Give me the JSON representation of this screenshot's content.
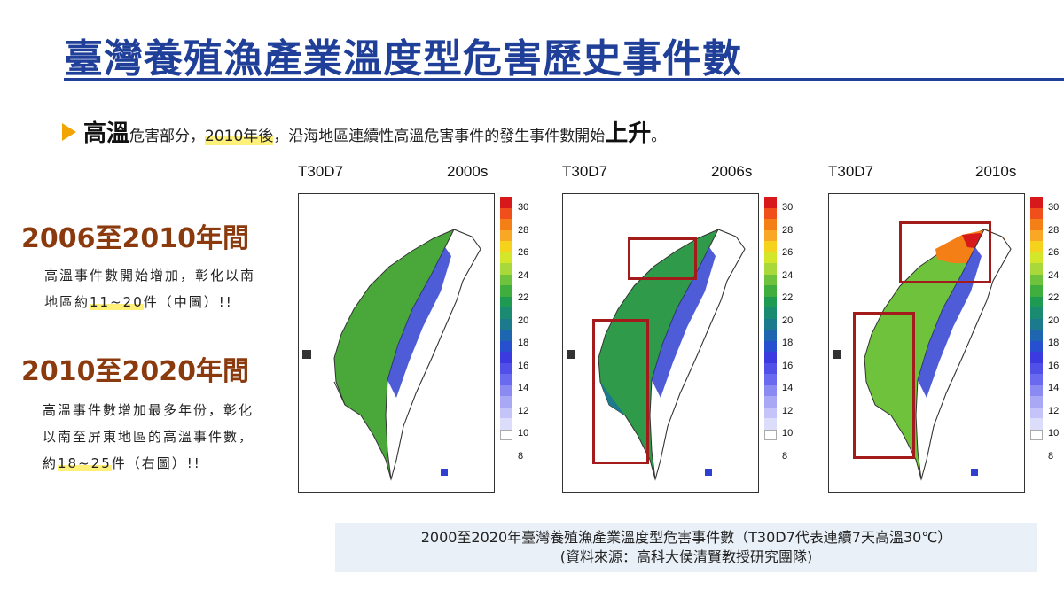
{
  "title": "臺灣養殖漁產業溫度型危害歷史事件數",
  "bullet": {
    "strong1": "高溫",
    "t1": "危害部分，",
    "highlight": "2010年後",
    "t2": "，沿海地區連續性高溫危害事件的發生事件數開始",
    "strong2": "上升",
    "t3": "。"
  },
  "section1": {
    "heading": "2006至2010年間",
    "line1": "高溫事件數開始增加，彰化以南",
    "line2_pre": "地區約",
    "line2_hl": "11~20",
    "line2_post": "件（中圖）!!"
  },
  "section2": {
    "heading": "2010至2020年間",
    "line1": "高溫事件數增加最多年份，彰化",
    "line2": "以南至屏東地區的高溫事件數，",
    "line3_pre": "約",
    "line3_hl": "18~25",
    "line3_post": "件（右圖）!!"
  },
  "maps": [
    {
      "left_label": "T30D7",
      "right_label": "2000s"
    },
    {
      "left_label": "T30D7",
      "right_label": "2006s"
    },
    {
      "left_label": "T30D7",
      "right_label": "2010s"
    }
  ],
  "colorbar": {
    "ticks": [
      "30",
      "28",
      "26",
      "24",
      "22",
      "20",
      "18",
      "16",
      "14",
      "12",
      "10",
      "8"
    ],
    "colors": [
      "#d7191c",
      "#f04e1b",
      "#f57f17",
      "#f9a825",
      "#f5d31c",
      "#d4e62a",
      "#a8d83a",
      "#6fc23c",
      "#3fae3f",
      "#1f9a52",
      "#1a8a70",
      "#1b7a8c",
      "#1e66b0",
      "#2650d0",
      "#3a3ae0",
      "#5050e8",
      "#6a6af0",
      "#8a8af2",
      "#a8a8f5",
      "#c4c4f8",
      "#dcdcfb",
      "#ffffff"
    ]
  },
  "caption": {
    "line1": "2000至2020年臺灣養殖漁產業溫度型危害事件數（T30D7代表連續7天高溫30℃）",
    "line2": "(資料來源：高科大侯清賢教授研究團隊)"
  }
}
